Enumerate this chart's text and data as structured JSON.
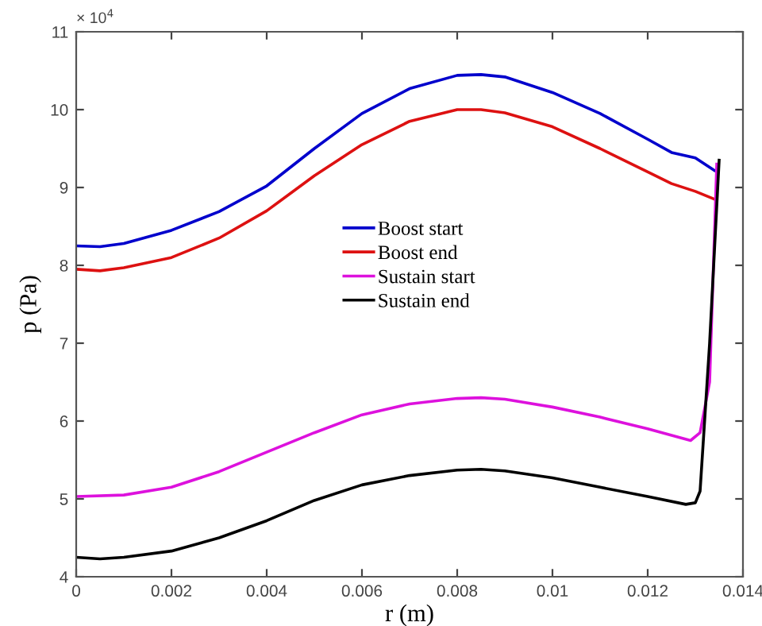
{
  "chart_data": {
    "type": "line",
    "xlabel": "r (m)",
    "ylabel": "p (Pa)",
    "annotations": [
      "× 10$^{4}$"
    ],
    "xlim": [
      0,
      0.014
    ],
    "xticks": [
      0,
      0.002,
      0.004,
      0.006,
      0.008,
      0.01,
      0.012,
      0.014
    ],
    "ylim": [
      4,
      11
    ],
    "yticks": [
      4,
      5,
      6,
      7,
      8,
      9,
      10,
      11
    ],
    "grid": false,
    "legend": "center",
    "marker": "none",
    "line_style": "solid",
    "series": [
      {
        "name": "Boost start",
        "color": "#0000cc",
        "x": [
          0,
          0.0005,
          0.001,
          0.002,
          0.003,
          0.004,
          0.005,
          0.006,
          0.007,
          0.008,
          0.0085,
          0.009,
          0.01,
          0.011,
          0.012,
          0.0125,
          0.013,
          0.0134
        ],
        "values": [
          8.25,
          8.24,
          8.28,
          8.45,
          8.69,
          9.02,
          9.5,
          9.95,
          10.27,
          10.44,
          10.45,
          10.42,
          10.22,
          9.95,
          9.62,
          9.45,
          9.38,
          9.22
        ]
      },
      {
        "name": "Boost end",
        "color": "#dd1111",
        "x": [
          0,
          0.0005,
          0.001,
          0.002,
          0.003,
          0.004,
          0.005,
          0.006,
          0.007,
          0.008,
          0.0085,
          0.009,
          0.01,
          0.011,
          0.012,
          0.0125,
          0.013,
          0.0134
        ],
        "values": [
          7.95,
          7.93,
          7.97,
          8.1,
          8.35,
          8.7,
          9.15,
          9.55,
          9.85,
          10.0,
          10.0,
          9.96,
          9.78,
          9.5,
          9.2,
          9.05,
          8.95,
          8.85
        ]
      },
      {
        "name": "Sustain start",
        "color": "#dd11dd",
        "x": [
          0,
          0.001,
          0.002,
          0.003,
          0.004,
          0.005,
          0.006,
          0.007,
          0.008,
          0.0085,
          0.009,
          0.01,
          0.011,
          0.012,
          0.0129,
          0.0131,
          0.0133,
          0.01345
        ],
        "values": [
          5.03,
          5.05,
          5.15,
          5.35,
          5.6,
          5.85,
          6.08,
          6.22,
          6.29,
          6.3,
          6.28,
          6.18,
          6.05,
          5.9,
          5.75,
          5.85,
          6.5,
          9.3
        ]
      },
      {
        "name": "Sustain end",
        "color": "#000000",
        "x": [
          0,
          0.0005,
          0.001,
          0.002,
          0.003,
          0.004,
          0.005,
          0.006,
          0.007,
          0.008,
          0.0085,
          0.009,
          0.01,
          0.011,
          0.012,
          0.0128,
          0.013,
          0.0131,
          0.0133,
          0.0135
        ],
        "values": [
          4.25,
          4.23,
          4.25,
          4.33,
          4.5,
          4.72,
          4.98,
          5.18,
          5.3,
          5.37,
          5.38,
          5.36,
          5.27,
          5.15,
          5.03,
          4.93,
          4.95,
          5.1,
          7.0,
          9.35
        ]
      }
    ]
  }
}
